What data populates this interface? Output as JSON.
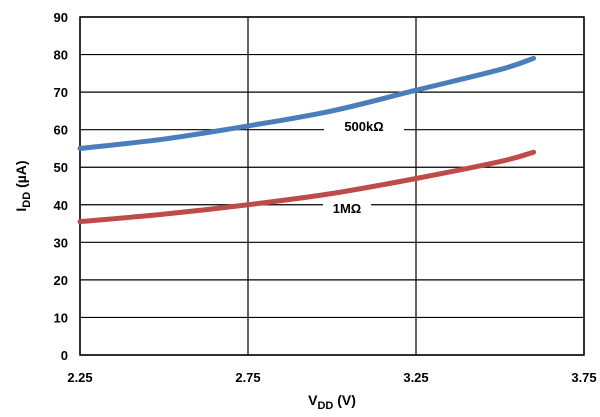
{
  "chart_data": {
    "type": "line",
    "xlabel": {
      "main": "V",
      "sub": "DD",
      "unit": " (V)"
    },
    "ylabel": {
      "main": "I",
      "sub": "DD",
      "unit": " (µA)"
    },
    "xlim": [
      2.25,
      3.75
    ],
    "ylim": [
      0,
      90
    ],
    "x_ticks": [
      2.25,
      2.75,
      3.25,
      3.75
    ],
    "x_tick_labels": [
      "2.25",
      "2.75",
      "3.25",
      "3.75"
    ],
    "y_ticks": [
      0,
      10,
      20,
      30,
      40,
      50,
      60,
      70,
      80,
      90
    ],
    "y_tick_labels": [
      "0",
      "10",
      "20",
      "30",
      "40",
      "50",
      "60",
      "70",
      "80",
      "90"
    ],
    "grid": true,
    "series": [
      {
        "name": "500kΩ",
        "color": "#4a7ebb",
        "x": [
          2.25,
          2.5,
          2.75,
          3.0,
          3.25,
          3.5,
          3.6
        ],
        "y": [
          55,
          57.5,
          61,
          65,
          70.5,
          76,
          79
        ]
      },
      {
        "name": "1MΩ",
        "color": "#be4b48",
        "x": [
          2.25,
          2.5,
          2.75,
          3.0,
          3.25,
          3.5,
          3.6
        ],
        "y": [
          35.5,
          37.5,
          40,
          43,
          47,
          51.5,
          54
        ]
      }
    ]
  }
}
